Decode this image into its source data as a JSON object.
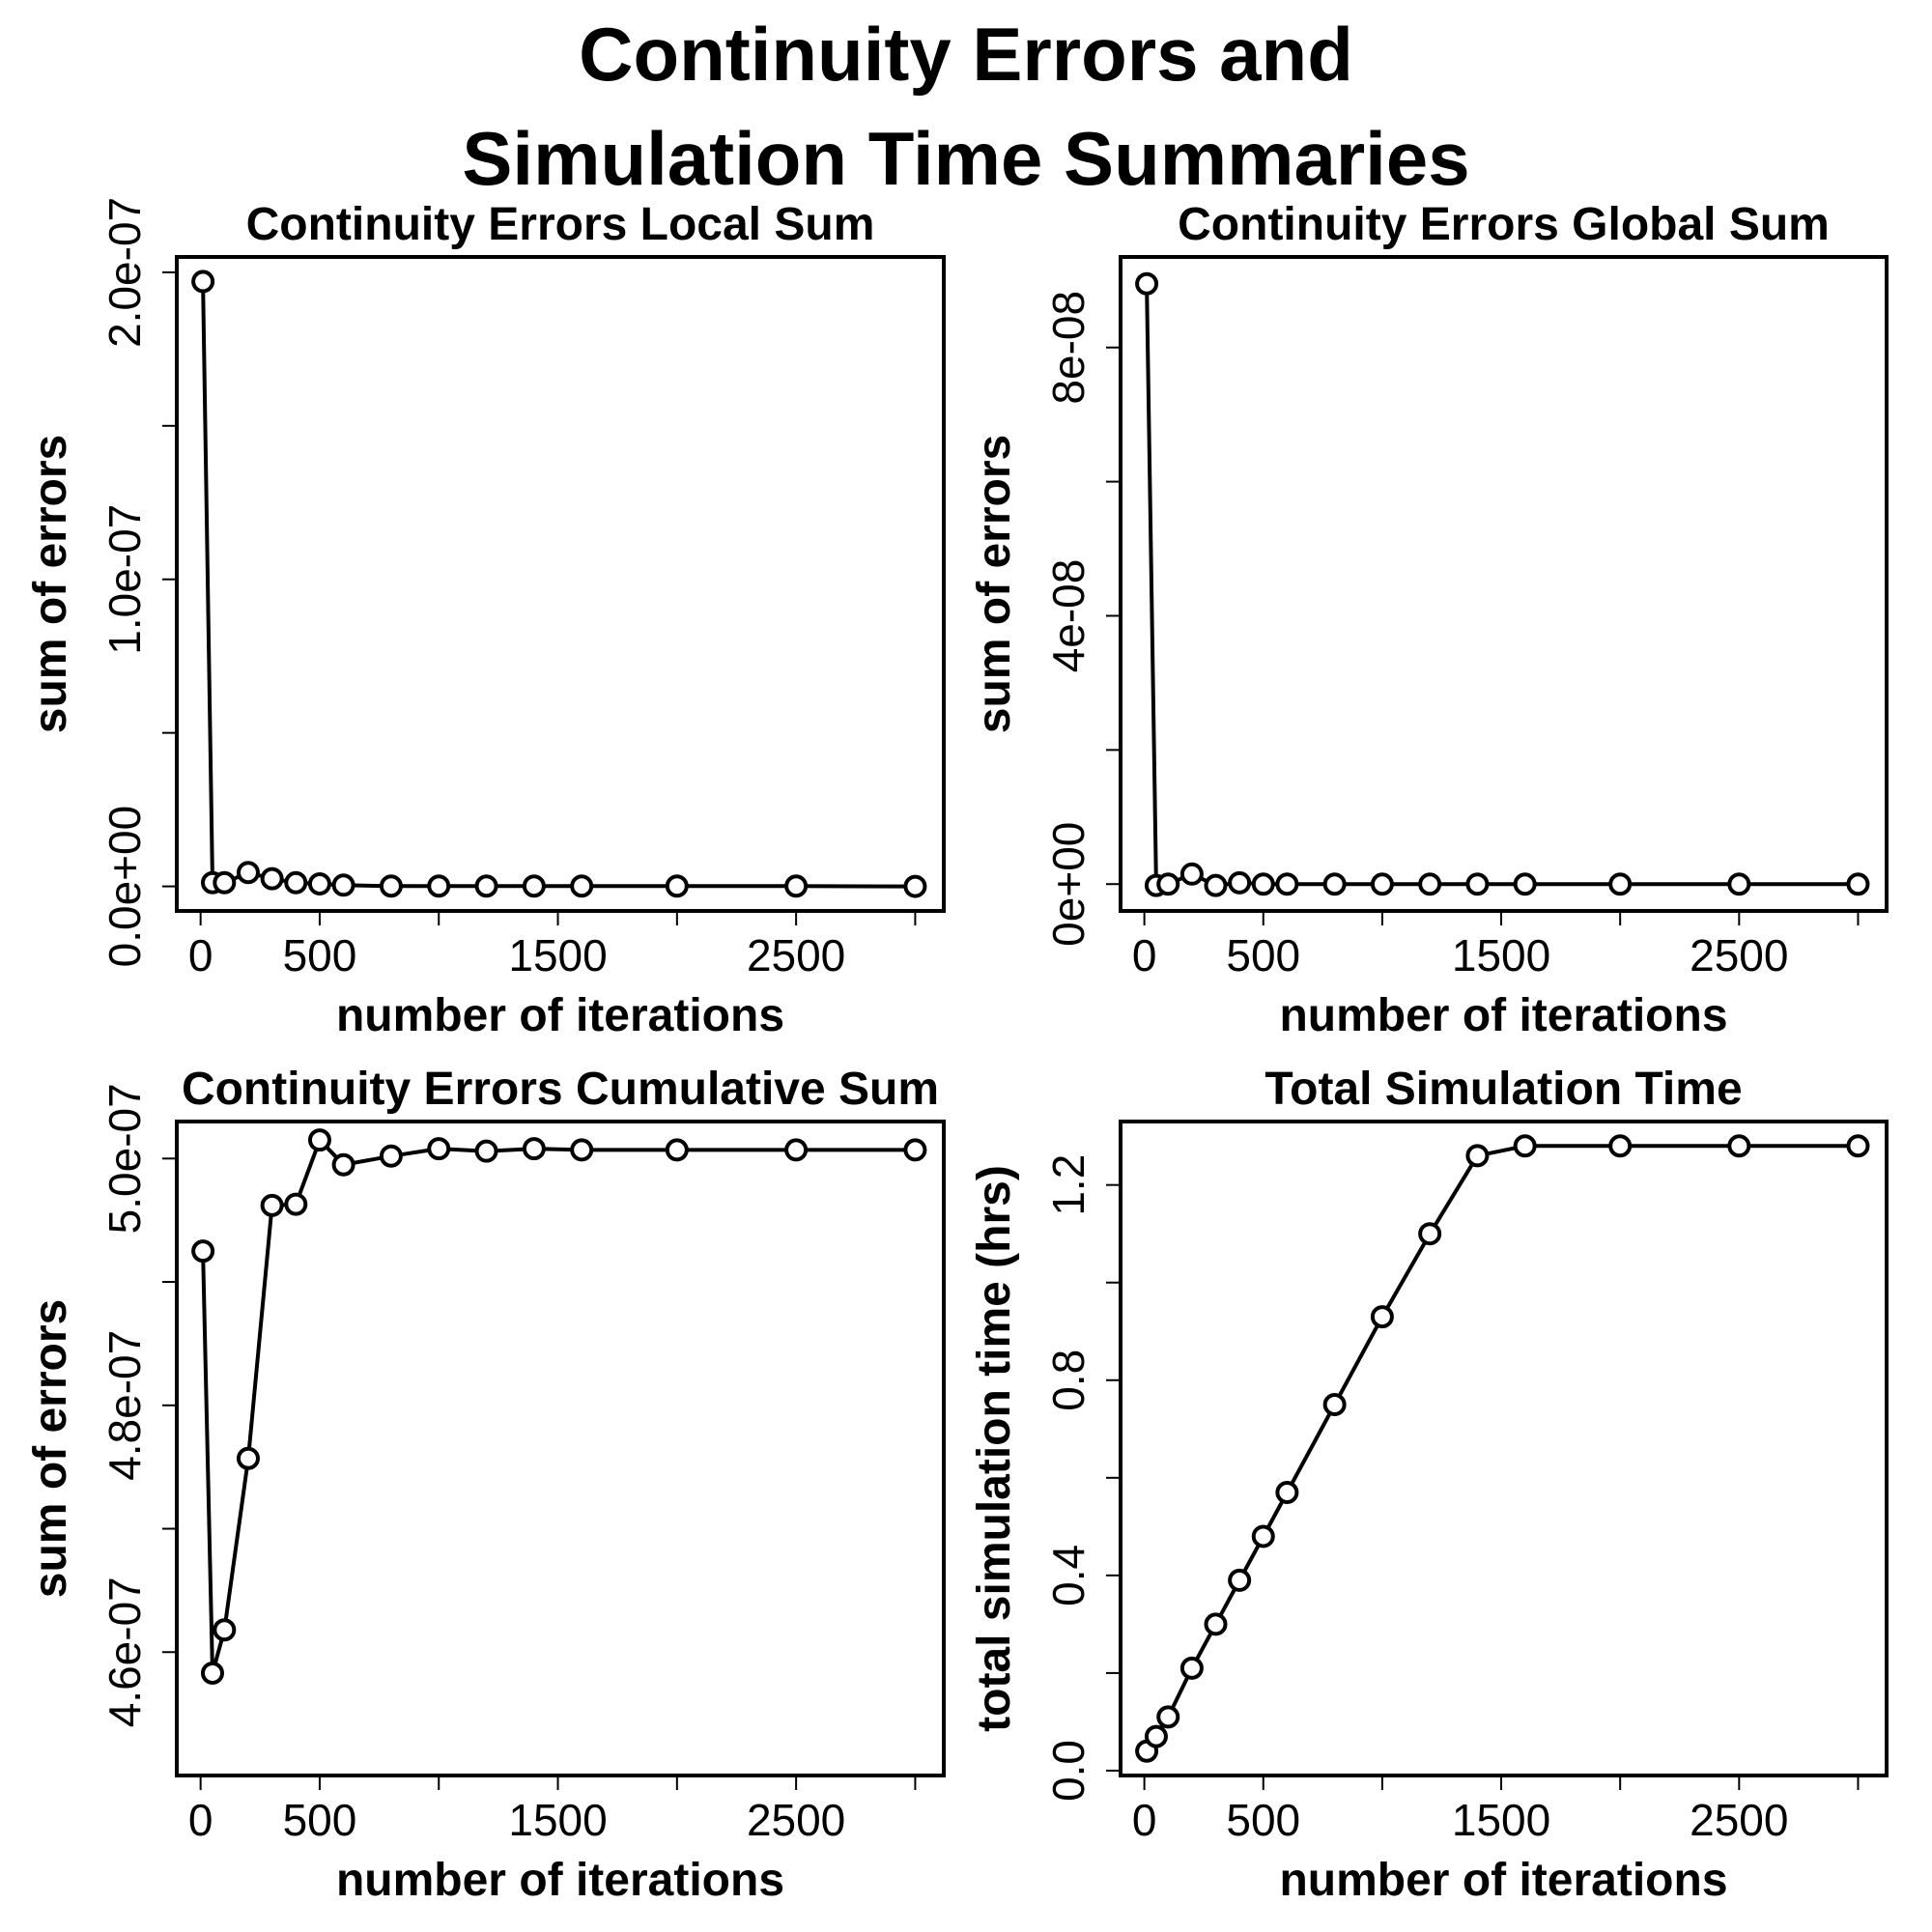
{
  "title": {
    "line1": "Continuity Errors and",
    "line2": "Simulation Time Summaries"
  },
  "chart_data": [
    {
      "id": "local",
      "type": "line",
      "title": "Continuity Errors Local Sum",
      "xlabel": "number of iterations",
      "ylabel": "sum of errors",
      "xlim": [
        -100,
        3120
      ],
      "ylim": [
        -8e-09,
        2.05e-07
      ],
      "xticks": [
        0,
        500,
        1000,
        1500,
        2000,
        2500,
        3000
      ],
      "xtick_labels": [
        "0",
        "500",
        "",
        "1500",
        "",
        "2500",
        ""
      ],
      "yticks": [
        0,
        5e-08,
        1e-07,
        1.5e-07,
        2e-07
      ],
      "ytick_labels": [
        "0.0e+00",
        "",
        "1.0e-07",
        "",
        "2.0e-07"
      ],
      "grid": false,
      "series": [
        {
          "x": [
            10,
            50,
            100,
            200,
            300,
            400,
            500,
            600,
            800,
            1000,
            1200,
            1400,
            1600,
            2000,
            2500,
            3000
          ],
          "y": [
            1.97e-07,
            1.2e-09,
            1.2e-09,
            4.5e-09,
            2.5e-09,
            1.2e-09,
            8e-10,
            4e-10,
            1e-10,
            1e-10,
            1e-10,
            1e-10,
            1e-10,
            1e-10,
            1e-10,
            0.0
          ]
        }
      ]
    },
    {
      "id": "global",
      "type": "line",
      "title": "Continuity Errors Global Sum",
      "xlabel": "number of iterations",
      "ylabel": "sum of errors",
      "xlim": [
        -100,
        3120
      ],
      "ylim": [
        -4e-09,
        9.35e-08
      ],
      "xticks": [
        0,
        500,
        1000,
        1500,
        2000,
        2500,
        3000
      ],
      "xtick_labels": [
        "0",
        "500",
        "",
        "1500",
        "",
        "2500",
        ""
      ],
      "yticks": [
        0,
        2e-08,
        4e-08,
        6e-08,
        8e-08
      ],
      "ytick_labels": [
        "0e+00",
        "",
        "4e-08",
        "",
        "8e-08"
      ],
      "grid": false,
      "series": [
        {
          "x": [
            10,
            50,
            100,
            200,
            300,
            400,
            500,
            600,
            800,
            1000,
            1200,
            1400,
            1600,
            2000,
            2500,
            3000
          ],
          "y": [
            8.95e-08,
            -2e-10,
            0.0,
            1.5e-09,
            -2e-10,
            2e-10,
            0.0,
            0.0,
            0.0,
            0.0,
            0.0,
            0.0,
            0.0,
            0.0,
            0.0,
            0.0
          ]
        }
      ]
    },
    {
      "id": "cumulative",
      "type": "line",
      "title": "Continuity Errors Cumulative Sum",
      "xlabel": "number of iterations",
      "ylabel": "sum of errors",
      "xlim": [
        -100,
        3120
      ],
      "ylim": [
        4.5e-07,
        5.03e-07
      ],
      "xticks": [
        0,
        500,
        1000,
        1500,
        2000,
        2500,
        3000
      ],
      "xtick_labels": [
        "0",
        "500",
        "",
        "1500",
        "",
        "2500",
        ""
      ],
      "yticks": [
        4.6e-07,
        4.7e-07,
        4.8e-07,
        4.9e-07,
        5e-07
      ],
      "ytick_labels": [
        "4.6e-07",
        "",
        "4.8e-07",
        "",
        "5.0e-07"
      ],
      "grid": false,
      "series": [
        {
          "x": [
            10,
            50,
            100,
            200,
            300,
            400,
            500,
            600,
            800,
            1000,
            1200,
            1400,
            1600,
            2000,
            2500,
            3000
          ],
          "y": [
            4.925e-07,
            4.583e-07,
            4.618e-07,
            4.757e-07,
            4.962e-07,
            4.963e-07,
            5.015e-07,
            4.995e-07,
            5.002e-07,
            5.008e-07,
            5.006e-07,
            5.008e-07,
            5.007e-07,
            5.007e-07,
            5.007e-07,
            5.007e-07
          ]
        }
      ]
    },
    {
      "id": "time",
      "type": "line",
      "title": "Total Simulation Time",
      "xlabel": "number of iterations",
      "ylabel": "total simulation time (hrs)",
      "xlim": [
        -100,
        3120
      ],
      "ylim": [
        -0.01,
        1.33
      ],
      "xticks": [
        0,
        500,
        1000,
        1500,
        2000,
        2500,
        3000
      ],
      "xtick_labels": [
        "0",
        "500",
        "",
        "1500",
        "",
        "2500",
        ""
      ],
      "yticks": [
        0,
        0.2,
        0.4,
        0.6,
        0.8,
        1.0,
        1.2
      ],
      "ytick_labels": [
        "0.0",
        "",
        "0.4",
        "",
        "0.8",
        "",
        "1.2"
      ],
      "grid": false,
      "series": [
        {
          "x": [
            10,
            50,
            100,
            200,
            300,
            400,
            500,
            600,
            800,
            1000,
            1200,
            1400,
            1600,
            2000,
            2500,
            3000
          ],
          "y": [
            0.04,
            0.07,
            0.11,
            0.21,
            0.3,
            0.39,
            0.48,
            0.57,
            0.75,
            0.93,
            1.1,
            1.26,
            1.28,
            1.28,
            1.28,
            1.28
          ]
        }
      ]
    }
  ],
  "colors": {
    "ink": "#000000",
    "background": "#ffffff"
  }
}
